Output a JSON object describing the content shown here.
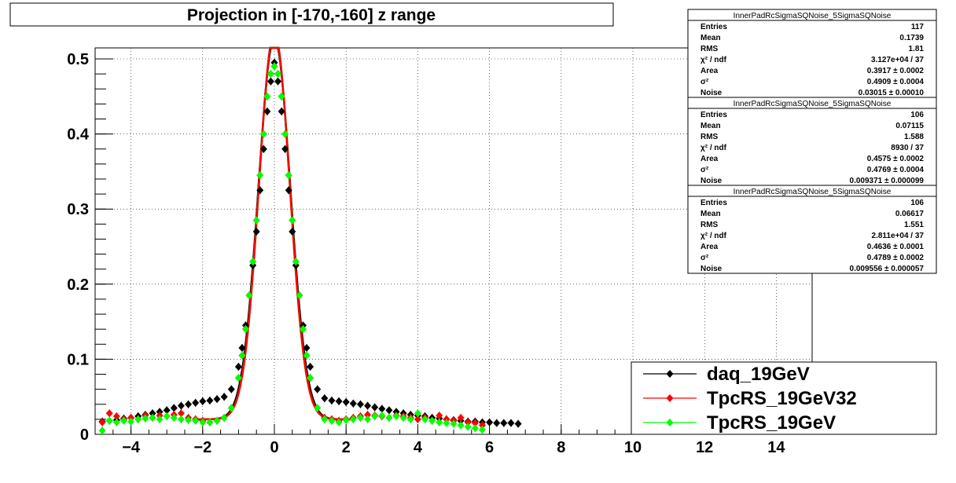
{
  "chart_data": {
    "type": "line",
    "title": "Projection in [-170,-160] z range",
    "xlim": [
      -5,
      15
    ],
    "ylim": [
      0,
      0.5
    ],
    "xticks": [
      "−4",
      "−2",
      "0",
      "2",
      "4",
      "6",
      "8",
      "10",
      "12",
      "14"
    ],
    "xtick_values": [
      -4,
      -2,
      0,
      2,
      4,
      6,
      8,
      10,
      12,
      14
    ],
    "yticks": [
      "0",
      "0.1",
      "0.2",
      "0.3",
      "0.4",
      "0.5"
    ],
    "ytick_values": [
      0,
      0.1,
      0.2,
      0.3,
      0.4,
      0.5
    ],
    "grid": true,
    "legend_position": "bottom-right",
    "series": [
      {
        "name": "daq_19GeV",
        "color": "#000000",
        "x": [
          -4.8,
          -4.6,
          -4.4,
          -4.2,
          -4.0,
          -3.8,
          -3.6,
          -3.4,
          -3.2,
          -3.0,
          -2.8,
          -2.6,
          -2.4,
          -2.2,
          -2.0,
          -1.8,
          -1.6,
          -1.4,
          -1.2,
          -1.0,
          -0.9,
          -0.8,
          -0.7,
          -0.6,
          -0.5,
          -0.4,
          -0.3,
          -0.2,
          -0.1,
          0.0,
          0.1,
          0.2,
          0.3,
          0.4,
          0.5,
          0.6,
          0.7,
          0.8,
          0.9,
          1.0,
          1.2,
          1.4,
          1.6,
          1.8,
          2.0,
          2.2,
          2.4,
          2.6,
          2.8,
          3.0,
          3.2,
          3.4,
          3.6,
          3.8,
          4.0,
          4.2,
          4.4,
          4.6,
          4.8,
          5.0,
          5.2,
          5.4,
          5.6,
          5.8,
          6.0,
          6.2,
          6.4,
          6.6,
          6.8
        ],
        "y": [
          0.017,
          0.018,
          0.019,
          0.021,
          0.022,
          0.024,
          0.026,
          0.028,
          0.03,
          0.032,
          0.035,
          0.038,
          0.04,
          0.042,
          0.044,
          0.045,
          0.047,
          0.05,
          0.06,
          0.09,
          0.115,
          0.145,
          0.185,
          0.225,
          0.27,
          0.325,
          0.38,
          0.43,
          0.47,
          0.495,
          0.47,
          0.43,
          0.38,
          0.325,
          0.27,
          0.225,
          0.185,
          0.145,
          0.115,
          0.09,
          0.06,
          0.048,
          0.045,
          0.044,
          0.043,
          0.041,
          0.04,
          0.038,
          0.036,
          0.034,
          0.032,
          0.03,
          0.028,
          0.026,
          0.025,
          0.024,
          0.022,
          0.021,
          0.02,
          0.019,
          0.018,
          0.017,
          0.017,
          0.016,
          0.016,
          0.015,
          0.015,
          0.015,
          0.014
        ]
      },
      {
        "name": "TpcRS_19GeV32",
        "color": "#ff0000",
        "x": [
          -4.8,
          -4.6,
          -4.4,
          -4.2,
          -4.0,
          -3.8,
          -3.6,
          -3.4,
          -3.2,
          -3.0,
          -2.8,
          -2.6,
          -2.4,
          -2.2,
          -2.0,
          -1.8,
          -1.6,
          -1.4,
          -1.2,
          -1.0,
          -0.9,
          -0.8,
          -0.7,
          -0.6,
          -0.5,
          -0.4,
          -0.3,
          -0.2,
          -0.1,
          0.0,
          0.1,
          0.2,
          0.3,
          0.4,
          0.5,
          0.6,
          0.7,
          0.8,
          0.9,
          1.0,
          1.2,
          1.4,
          1.6,
          1.8,
          2.0,
          2.2,
          2.4,
          2.6,
          2.8,
          3.0,
          3.2,
          3.4,
          3.6,
          3.8,
          4.0,
          4.2,
          4.4,
          4.6,
          4.8,
          5.0,
          5.2,
          5.4,
          5.6,
          5.8
        ],
        "y": [
          0.016,
          0.028,
          0.024,
          0.02,
          0.022,
          0.02,
          0.025,
          0.022,
          0.025,
          0.024,
          0.026,
          0.028,
          0.022,
          0.02,
          0.018,
          0.016,
          0.018,
          0.022,
          0.035,
          0.075,
          0.105,
          0.14,
          0.185,
          0.23,
          0.285,
          0.345,
          0.4,
          0.45,
          0.48,
          0.49,
          0.48,
          0.45,
          0.4,
          0.345,
          0.285,
          0.23,
          0.185,
          0.14,
          0.105,
          0.075,
          0.035,
          0.022,
          0.02,
          0.018,
          0.02,
          0.022,
          0.024,
          0.026,
          0.025,
          0.024,
          0.022,
          0.025,
          0.024,
          0.022,
          0.02,
          0.022,
          0.018,
          0.025,
          0.02,
          0.018,
          0.022,
          0.016,
          0.015,
          0.012
        ]
      },
      {
        "name": "TpcRS_19GeV",
        "color": "#00ff00",
        "x": [
          -4.8,
          -4.6,
          -4.4,
          -4.2,
          -4.0,
          -3.8,
          -3.6,
          -3.4,
          -3.2,
          -3.0,
          -2.8,
          -2.6,
          -2.4,
          -2.2,
          -2.0,
          -1.8,
          -1.6,
          -1.4,
          -1.2,
          -1.0,
          -0.9,
          -0.8,
          -0.7,
          -0.6,
          -0.5,
          -0.4,
          -0.3,
          -0.2,
          -0.1,
          0.0,
          0.1,
          0.2,
          0.3,
          0.4,
          0.5,
          0.6,
          0.7,
          0.8,
          0.9,
          1.0,
          1.2,
          1.4,
          1.6,
          1.8,
          2.0,
          2.2,
          2.4,
          2.6,
          2.8,
          3.0,
          3.2,
          3.4,
          3.6,
          3.8,
          4.0,
          4.2,
          4.4,
          4.6,
          4.8,
          5.0,
          5.2,
          5.4,
          5.6,
          5.8
        ],
        "y": [
          0.005,
          0.018,
          0.016,
          0.018,
          0.017,
          0.02,
          0.021,
          0.022,
          0.02,
          0.024,
          0.022,
          0.02,
          0.019,
          0.018,
          0.016,
          0.016,
          0.018,
          0.022,
          0.035,
          0.075,
          0.105,
          0.14,
          0.185,
          0.23,
          0.285,
          0.345,
          0.4,
          0.45,
          0.48,
          0.49,
          0.48,
          0.45,
          0.4,
          0.345,
          0.285,
          0.23,
          0.185,
          0.14,
          0.105,
          0.075,
          0.035,
          0.02,
          0.018,
          0.016,
          0.019,
          0.02,
          0.022,
          0.02,
          0.024,
          0.025,
          0.022,
          0.024,
          0.022,
          0.02,
          0.028,
          0.02,
          0.018,
          0.016,
          0.015,
          0.014,
          0.012,
          0.01,
          0.008,
          0.006
        ]
      }
    ],
    "curves": [
      {
        "color": "#000000",
        "peak": 0.508,
        "sigma": 0.445
      },
      {
        "color": "#00ff00",
        "peak": 0.515,
        "sigma": 0.43
      },
      {
        "color": "#ff0000",
        "peak": 0.515,
        "sigma": 0.43
      }
    ]
  },
  "stat_boxes": [
    {
      "title": "InnerPadRcSigmaSQNoise_5SigmaSQNoise",
      "rows": [
        {
          "label": "Entries",
          "value": "117"
        },
        {
          "label": "Mean",
          "value": "0.1739"
        },
        {
          "label": "RMS",
          "value": "1.81"
        },
        {
          "label": "χ² / ndf",
          "value": "3.127e+04 / 37"
        },
        {
          "label": "Area",
          "value": "0.3917 ± 0.0002"
        },
        {
          "label": "σ²",
          "value": "0.4909 ± 0.0004"
        },
        {
          "label": "Noise",
          "value": "0.03015 ± 0.00010"
        }
      ]
    },
    {
      "title": "InnerPadRcSigmaSQNoise_5SigmaSQNoise",
      "rows": [
        {
          "label": "Entries",
          "value": "106"
        },
        {
          "label": "Mean",
          "value": "0.07115"
        },
        {
          "label": "RMS",
          "value": "1.588"
        },
        {
          "label": "χ² / ndf",
          "value": "8930 / 37"
        },
        {
          "label": "Area",
          "value": "0.4575 ± 0.0002"
        },
        {
          "label": "σ²",
          "value": "0.4769 ± 0.0004"
        },
        {
          "label": "Noise",
          "value": "0.009371 ± 0.000099"
        }
      ]
    },
    {
      "title": "InnerPadRcSigmaSQNoise_5SigmaSQNoise",
      "rows": [
        {
          "label": "Entries",
          "value": "106"
        },
        {
          "label": "Mean",
          "value": "0.06617"
        },
        {
          "label": "RMS",
          "value": "1.551"
        },
        {
          "label": "χ² / ndf",
          "value": "2.811e+04 / 37"
        },
        {
          "label": "Area",
          "value": "0.4636 ± 0.0001"
        },
        {
          "label": "σ²",
          "value": "0.4789 ± 0.0002"
        },
        {
          "label": "Noise",
          "value": "0.009556 ± 0.000057"
        }
      ]
    }
  ]
}
